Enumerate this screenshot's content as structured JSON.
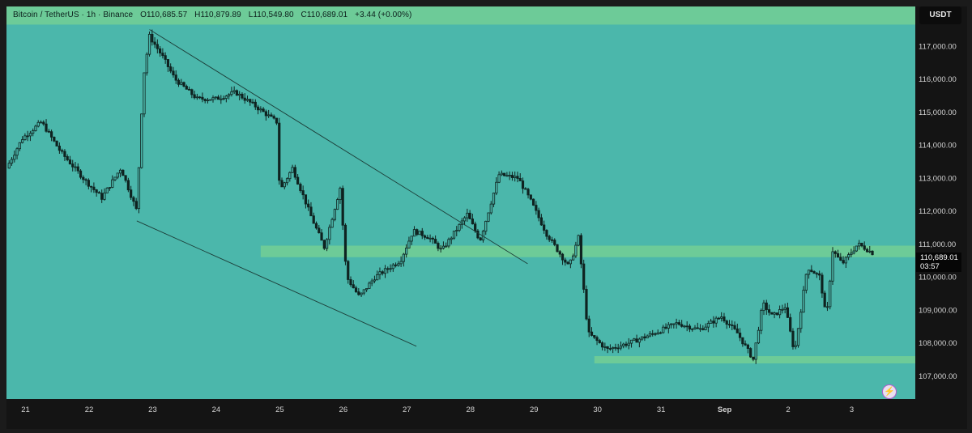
{
  "header": {
    "symbol": "Bitcoin / TetherUS · 1h · Binance",
    "open": "O110,685.57",
    "high": "H110,879.89",
    "low": "L110,549.80",
    "close": "C110,689.01",
    "change": "+3.44 (+0.00%)"
  },
  "currency_label": "USDT",
  "last_price": {
    "value": "110,689.01",
    "countdown": "03:57",
    "level": 110689.01
  },
  "colors": {
    "background": "#4bb7ab",
    "zone": "#6fcb97",
    "candle": "#0f2320",
    "trendline": "#1c3c37",
    "axis_bg": "#141414",
    "label_box": "#060606",
    "accent_icon": "#b03fd0"
  },
  "icons": {
    "quick_action": "lightning-icon"
  },
  "chart_data": {
    "type": "candlestick",
    "title": "",
    "xlabel": "",
    "ylabel": "",
    "ylim": [
      106300,
      118200
    ],
    "yticks": [
      "107,000.00",
      "108,000.00",
      "109,000.00",
      "110,000.00",
      "111,000.00",
      "112,000.00",
      "113,000.00",
      "114,000.00",
      "115,000.00",
      "116,000.00",
      "117,000.00"
    ],
    "xticks": [
      "21",
      "22",
      "23",
      "24",
      "25",
      "26",
      "27",
      "28",
      "29",
      "30",
      "31",
      "Sep",
      "2",
      "3"
    ],
    "x_unit": "day",
    "xlim": [
      20.7,
      35.0
    ],
    "price_path": [
      [
        20.7,
        113300
      ],
      [
        20.95,
        114200
      ],
      [
        21.25,
        114700
      ],
      [
        21.55,
        113800
      ],
      [
        21.95,
        112900
      ],
      [
        22.2,
        112400
      ],
      [
        22.5,
        113300
      ],
      [
        22.75,
        112000
      ],
      [
        22.85,
        116000
      ],
      [
        22.95,
        117300
      ],
      [
        23.15,
        116700
      ],
      [
        23.35,
        116000
      ],
      [
        23.7,
        115400
      ],
      [
        24.0,
        115400
      ],
      [
        24.3,
        115600
      ],
      [
        24.6,
        115200
      ],
      [
        24.95,
        114700
      ],
      [
        25.0,
        112600
      ],
      [
        25.2,
        113300
      ],
      [
        25.5,
        111800
      ],
      [
        25.7,
        110900
      ],
      [
        25.95,
        112700
      ],
      [
        26.05,
        110000
      ],
      [
        26.25,
        109400
      ],
      [
        26.5,
        110000
      ],
      [
        26.9,
        110500
      ],
      [
        27.1,
        111400
      ],
      [
        27.35,
        111200
      ],
      [
        27.55,
        110800
      ],
      [
        27.95,
        111900
      ],
      [
        28.15,
        111100
      ],
      [
        28.45,
        113100
      ],
      [
        28.75,
        113000
      ],
      [
        28.95,
        112300
      ],
      [
        29.2,
        111300
      ],
      [
        29.55,
        110300
      ],
      [
        29.7,
        111200
      ],
      [
        29.85,
        108300
      ],
      [
        30.15,
        107800
      ],
      [
        30.5,
        108000
      ],
      [
        30.9,
        108300
      ],
      [
        31.25,
        108600
      ],
      [
        31.6,
        108400
      ],
      [
        31.95,
        108800
      ],
      [
        32.2,
        108300
      ],
      [
        32.45,
        107500
      ],
      [
        32.6,
        109200
      ],
      [
        32.75,
        108800
      ],
      [
        32.95,
        109100
      ],
      [
        33.1,
        107700
      ],
      [
        33.3,
        110300
      ],
      [
        33.5,
        110000
      ],
      [
        33.6,
        108700
      ],
      [
        33.7,
        110800
      ],
      [
        33.85,
        110400
      ],
      [
        34.1,
        111000
      ],
      [
        34.35,
        110700
      ]
    ],
    "zones": [
      {
        "name": "upper band",
        "y1": 117650,
        "y2": 118200,
        "x1": 20.7,
        "x2": 35.0
      },
      {
        "name": "resistance",
        "y1": 110600,
        "y2": 110950,
        "x1": 24.7,
        "x2": 35.0
      },
      {
        "name": "support",
        "y1": 107380,
        "y2": 107600,
        "x1": 29.95,
        "x2": 35.0
      }
    ],
    "trendlines": [
      {
        "name": "upper channel",
        "from": [
          22.95,
          117500
        ],
        "to": [
          28.9,
          110400
        ]
      },
      {
        "name": "lower channel",
        "from": [
          22.75,
          111700
        ],
        "to": [
          27.15,
          107900
        ]
      }
    ]
  }
}
